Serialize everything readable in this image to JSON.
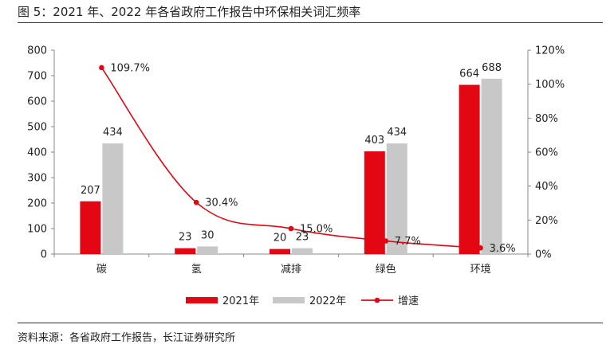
{
  "figure": {
    "title": "图 5：2021 年、2022 年各省政府工作报告中环保相关词汇频率",
    "source": "资料来源：各省政府工作报告，长江证券研究所"
  },
  "chart_data": {
    "type": "bar",
    "title": "2021 年、2022 年各省政府工作报告中环保相关词汇频率",
    "categories": [
      "碳",
      "氢",
      "减排",
      "绿色",
      "环境"
    ],
    "series": [
      {
        "name": "2021年",
        "type": "bar",
        "axis": "left",
        "color": "#E30613",
        "values": [
          207,
          23,
          20,
          403,
          664
        ]
      },
      {
        "name": "2022年",
        "type": "bar",
        "axis": "left",
        "color": "#C8C8C8",
        "values": [
          434,
          30,
          23,
          434,
          688
        ]
      },
      {
        "name": "增速",
        "type": "line",
        "axis": "right",
        "color": "#E30613",
        "values": [
          109.7,
          30.4,
          15.0,
          7.7,
          3.6
        ],
        "labels": [
          "109.7%",
          "30.4%",
          "15.0%",
          "7.7%",
          "3.6%"
        ]
      }
    ],
    "yleft": {
      "ylim": [
        0,
        800
      ],
      "ticks": [
        0,
        100,
        200,
        300,
        400,
        500,
        600,
        700,
        800
      ]
    },
    "yright": {
      "ylim": [
        0,
        120
      ],
      "ticks": [
        0,
        20,
        40,
        60,
        80,
        100,
        120
      ],
      "tick_labels": [
        "0%",
        "20%",
        "40%",
        "60%",
        "80%",
        "100%",
        "120%"
      ]
    },
    "legend": {
      "position": "bottom",
      "entries": [
        "2021年",
        "2022年",
        "增速"
      ]
    },
    "grid": false
  }
}
